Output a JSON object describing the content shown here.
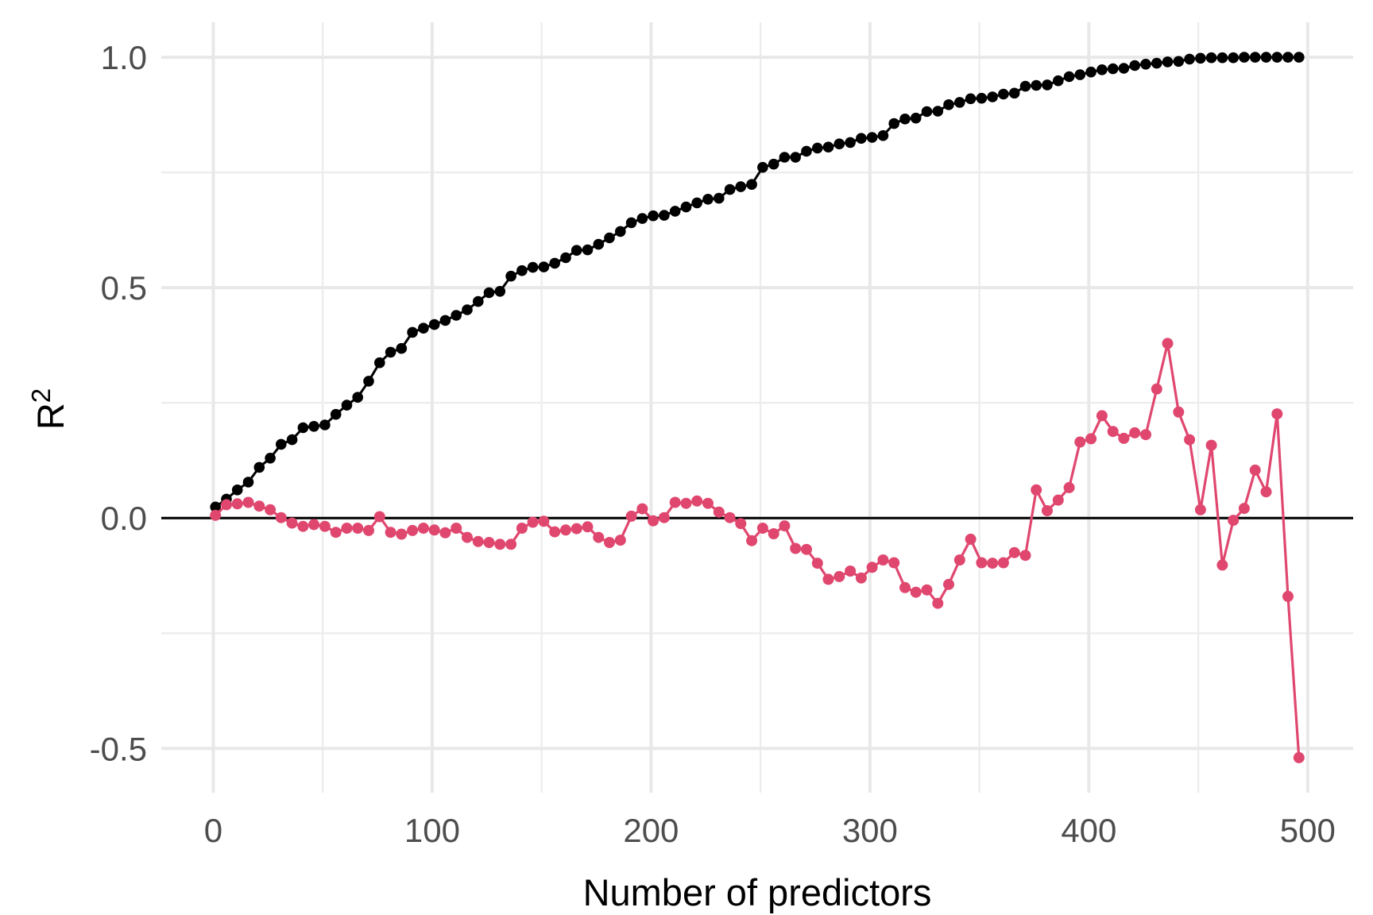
{
  "figure": {
    "background": "#FFFFFF",
    "panel_background": "#FFFFFF",
    "grid_major_color": "#E8E8E8",
    "grid_minor_color": "#EDEDED",
    "axis_text_color": "#4D4D4D",
    "axis_title_color": "#000000",
    "reference_line_color": "#000000"
  },
  "chart_data": {
    "type": "line",
    "title": "",
    "xlabel": "Number of predictors",
    "ylabel": "R²",
    "ylabel_base": "R",
    "ylabel_sup": "2",
    "legend_position": "none",
    "grid": true,
    "xlim": [
      -23.75,
      520.75
    ],
    "ylim": [
      -0.596,
      1.076
    ],
    "x_major_ticks": [
      0,
      100,
      200,
      300,
      400,
      500
    ],
    "x_tick_labels": [
      "0",
      "100",
      "200",
      "300",
      "400",
      "500"
    ],
    "x_minor_ticks": [
      50,
      150,
      250,
      350,
      450
    ],
    "y_major_ticks": [
      -0.5,
      0,
      0.5,
      1
    ],
    "y_tick_labels": [
      "-0.5",
      "0.0",
      "0.5",
      "1.0"
    ],
    "y_minor_ticks": [
      -0.25,
      0.25,
      0.75
    ],
    "reference_line_y": 0,
    "x": [
      1,
      6,
      11,
      16,
      21,
      26,
      31,
      36,
      41,
      46,
      51,
      56,
      61,
      66,
      71,
      76,
      81,
      86,
      91,
      96,
      101,
      106,
      111,
      116,
      121,
      126,
      131,
      136,
      141,
      146,
      151,
      156,
      161,
      166,
      171,
      176,
      181,
      186,
      191,
      196,
      201,
      206,
      211,
      216,
      221,
      226,
      231,
      236,
      241,
      246,
      251,
      256,
      261,
      266,
      271,
      276,
      281,
      286,
      291,
      296,
      301,
      306,
      311,
      316,
      321,
      326,
      331,
      336,
      341,
      346,
      351,
      356,
      361,
      366,
      371,
      376,
      381,
      386,
      391,
      396,
      401,
      406,
      411,
      416,
      421,
      426,
      431,
      436,
      441,
      446,
      451,
      456,
      461,
      466,
      471,
      476,
      481,
      486,
      491,
      496
    ],
    "series": [
      {
        "name": "black-series",
        "color": "#000000",
        "point_radius": 6.8,
        "line_width": 3,
        "values": [
          0.024,
          0.041,
          0.061,
          0.078,
          0.11,
          0.13,
          0.16,
          0.17,
          0.196,
          0.199,
          0.202,
          0.225,
          0.245,
          0.262,
          0.297,
          0.337,
          0.36,
          0.368,
          0.403,
          0.412,
          0.42,
          0.429,
          0.44,
          0.452,
          0.47,
          0.489,
          0.492,
          0.525,
          0.537,
          0.544,
          0.545,
          0.553,
          0.565,
          0.581,
          0.582,
          0.594,
          0.608,
          0.622,
          0.641,
          0.65,
          0.656,
          0.657,
          0.666,
          0.675,
          0.684,
          0.692,
          0.694,
          0.713,
          0.719,
          0.724,
          0.761,
          0.768,
          0.783,
          0.783,
          0.796,
          0.803,
          0.805,
          0.812,
          0.815,
          0.824,
          0.826,
          0.83,
          0.856,
          0.866,
          0.868,
          0.882,
          0.883,
          0.897,
          0.902,
          0.91,
          0.911,
          0.914,
          0.92,
          0.922,
          0.937,
          0.939,
          0.94,
          0.949,
          0.958,
          0.962,
          0.968,
          0.973,
          0.975,
          0.976,
          0.982,
          0.985,
          0.987,
          0.99,
          0.991,
          0.996,
          0.998,
          0.999,
          0.999,
          0.999,
          1.0,
          1.0,
          1.0,
          1.0,
          1.0,
          1.0
        ]
      },
      {
        "name": "pink-series",
        "color": "#E0476F",
        "point_radius": 7,
        "line_width": 3.2,
        "values": [
          0.006,
          0.029,
          0.031,
          0.034,
          0.026,
          0.018,
          0.001,
          -0.011,
          -0.018,
          -0.014,
          -0.018,
          -0.031,
          -0.022,
          -0.022,
          -0.027,
          0.003,
          -0.031,
          -0.035,
          -0.027,
          -0.022,
          -0.026,
          -0.032,
          -0.022,
          -0.042,
          -0.051,
          -0.053,
          -0.057,
          -0.057,
          -0.022,
          -0.009,
          -0.007,
          -0.03,
          -0.026,
          -0.023,
          -0.019,
          -0.042,
          -0.053,
          -0.048,
          0.004,
          0.02,
          -0.006,
          0.001,
          0.034,
          0.032,
          0.037,
          0.032,
          0.013,
          0.001,
          -0.012,
          -0.049,
          -0.022,
          -0.034,
          -0.017,
          -0.066,
          -0.068,
          -0.098,
          -0.133,
          -0.127,
          -0.115,
          -0.13,
          -0.107,
          -0.091,
          -0.097,
          -0.151,
          -0.161,
          -0.156,
          -0.185,
          -0.144,
          -0.091,
          -0.046,
          -0.097,
          -0.098,
          -0.097,
          -0.075,
          -0.081,
          0.061,
          0.016,
          0.039,
          0.066,
          0.165,
          0.172,
          0.222,
          0.188,
          0.173,
          0.185,
          0.181,
          0.28,
          0.379,
          0.23,
          0.17,
          0.018,
          0.158,
          -0.102,
          -0.005,
          0.021,
          0.104,
          0.057,
          0.226,
          -0.17,
          -0.52
        ]
      }
    ]
  }
}
